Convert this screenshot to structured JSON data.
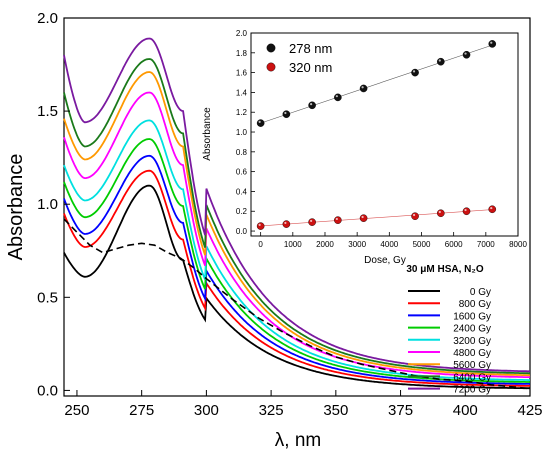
{
  "chart_data": [
    {
      "type": "line",
      "xlabel": "λ, nm",
      "ylabel": "Absorbance",
      "xlim": [
        245,
        425
      ],
      "ylim": [
        -0.03,
        2.0
      ],
      "xticks": [
        250,
        275,
        300,
        325,
        350,
        375,
        400,
        425
      ],
      "yticks": [
        0.0,
        0.5,
        1.0,
        1.5,
        2.0
      ],
      "ytick_labels": [
        "0.0",
        "0.5",
        "1.0",
        "1.5",
        "2.0"
      ],
      "legend_title": "30 μM HSA, N₂O",
      "legend_position": "bottom-right",
      "series": [
        {
          "name": "0 Gy",
          "color": "#000000",
          "peak": 1.1,
          "valley": 0.61,
          "start": 0.74,
          "shoulder": 0.7,
          "tail": 0.008
        },
        {
          "name": "800 Gy",
          "color": "#ff0000",
          "peak": 1.18,
          "valley": 0.77,
          "start": 0.95,
          "shoulder": 0.81,
          "tail": 0.02
        },
        {
          "name": "1600 Gy",
          "color": "#0000ff",
          "peak": 1.26,
          "valley": 0.84,
          "start": 1.03,
          "shoulder": 0.9,
          "tail": 0.03
        },
        {
          "name": "2400 Gy",
          "color": "#00cc00",
          "peak": 1.35,
          "valley": 0.93,
          "start": 1.12,
          "shoulder": 0.99,
          "tail": 0.04
        },
        {
          "name": "3200 Gy",
          "color": "#00e0e0",
          "peak": 1.45,
          "valley": 1.02,
          "start": 1.21,
          "shoulder": 1.08,
          "tail": 0.05
        },
        {
          "name": "4800 Gy",
          "color": "#ff00ff",
          "peak": 1.6,
          "valley": 1.14,
          "start": 1.36,
          "shoulder": 1.21,
          "tail": 0.065
        },
        {
          "name": "5600 Gy",
          "color": "#ff9900",
          "peak": 1.71,
          "valley": 1.24,
          "start": 1.46,
          "shoulder": 1.31,
          "tail": 0.075
        },
        {
          "name": "6400 Gy",
          "color": "#1a7a1a",
          "peak": 1.78,
          "valley": 1.31,
          "start": 1.6,
          "shoulder": 1.38,
          "tail": 0.085
        },
        {
          "name": "7200 Gy",
          "color": "#7a1aa0",
          "peak": 1.89,
          "valley": 1.44,
          "start": 1.8,
          "shoulder": 1.5,
          "tail": 0.095
        }
      ],
      "dashed_difference": {
        "color": "#000000",
        "x": [
          245,
          250,
          255,
          260,
          265,
          270,
          275,
          280,
          285,
          290,
          295,
          300,
          310,
          320,
          330,
          340,
          350,
          360,
          370,
          380,
          390,
          400,
          410,
          425
        ],
        "y": [
          0.92,
          0.85,
          0.78,
          0.74,
          0.76,
          0.78,
          0.79,
          0.78,
          0.74,
          0.71,
          0.66,
          0.6,
          0.49,
          0.39,
          0.31,
          0.24,
          0.18,
          0.14,
          0.11,
          0.08,
          0.06,
          0.05,
          0.03,
          0.01
        ]
      }
    },
    {
      "type": "scatter",
      "xlabel": "Dose, Gy",
      "ylabel": "Absorbance",
      "xlim": [
        -300,
        8000
      ],
      "ylim": [
        -0.05,
        2.0
      ],
      "xticks": [
        0,
        1000,
        2000,
        3000,
        4000,
        5000,
        6000,
        7000,
        8000
      ],
      "yticks": [
        0.0,
        0.2,
        0.4,
        0.6,
        0.8,
        1.0,
        1.2,
        1.4,
        1.6,
        1.8,
        2.0
      ],
      "ytick_labels": [
        "0.0",
        "0.2",
        "0.4",
        "0.6",
        "0.8",
        "1.0",
        "1.2",
        "1.4",
        "1.6",
        "1.8",
        "2.0"
      ],
      "legend_position": "top-left",
      "series": [
        {
          "name": "278 nm",
          "color": "#111111",
          "x": [
            0,
            800,
            1600,
            2400,
            3200,
            4800,
            5600,
            6400,
            7200
          ],
          "y": [
            1.09,
            1.18,
            1.27,
            1.35,
            1.44,
            1.6,
            1.71,
            1.78,
            1.89
          ]
        },
        {
          "name": "320 nm",
          "color": "#cc1111",
          "x": [
            0,
            800,
            1600,
            2400,
            3200,
            4800,
            5600,
            6400,
            7200
          ],
          "y": [
            0.05,
            0.07,
            0.09,
            0.11,
            0.13,
            0.15,
            0.18,
            0.2,
            0.22
          ]
        }
      ]
    }
  ]
}
